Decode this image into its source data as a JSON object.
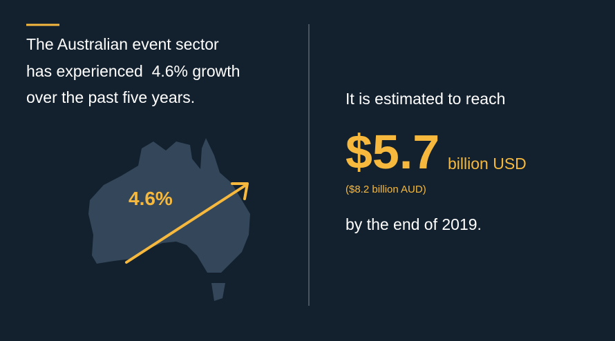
{
  "left": {
    "text_lines": [
      "The Australian event sector",
      "has experienced  4.6% growth",
      "over the past five years."
    ],
    "map_label": "4.6%"
  },
  "right": {
    "intro": "It is estimated to reach",
    "amount": "$5.7",
    "amount_unit": "billion USD",
    "aud": "($8.2 billion AUD)",
    "outro": "by the end of 2019."
  }
}
